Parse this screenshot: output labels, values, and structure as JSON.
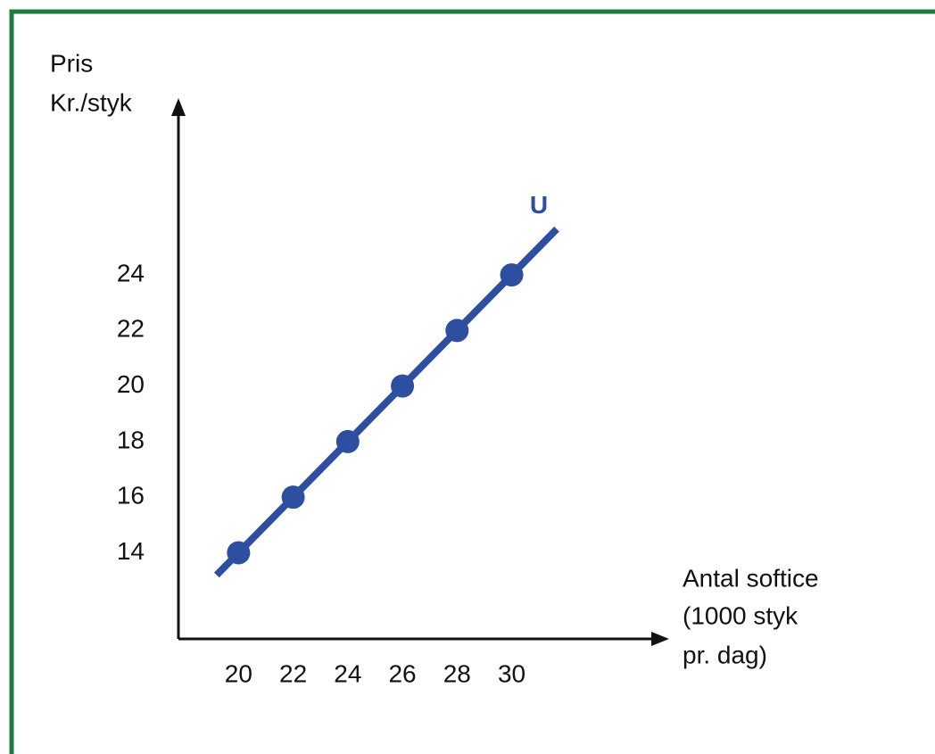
{
  "chart_data": {
    "type": "line",
    "y_label": [
      "Pris",
      "Kr./styk"
    ],
    "x_label": [
      "Antal softice",
      "(1000 styk",
      "pr. dag)"
    ],
    "x": [
      20,
      22,
      24,
      26,
      28,
      30
    ],
    "series": [
      {
        "name": "U",
        "color": "#2e4fa0",
        "values": [
          14,
          16,
          18,
          20,
          22,
          24
        ]
      }
    ],
    "xlim": [
      17.8,
      35.6
    ],
    "ylim": [
      10.9,
      30.2
    ],
    "xticks": [
      20,
      22,
      24,
      26,
      28,
      30
    ],
    "yticks": [
      14,
      16,
      18,
      20,
      22,
      24
    ],
    "grid": false
  }
}
